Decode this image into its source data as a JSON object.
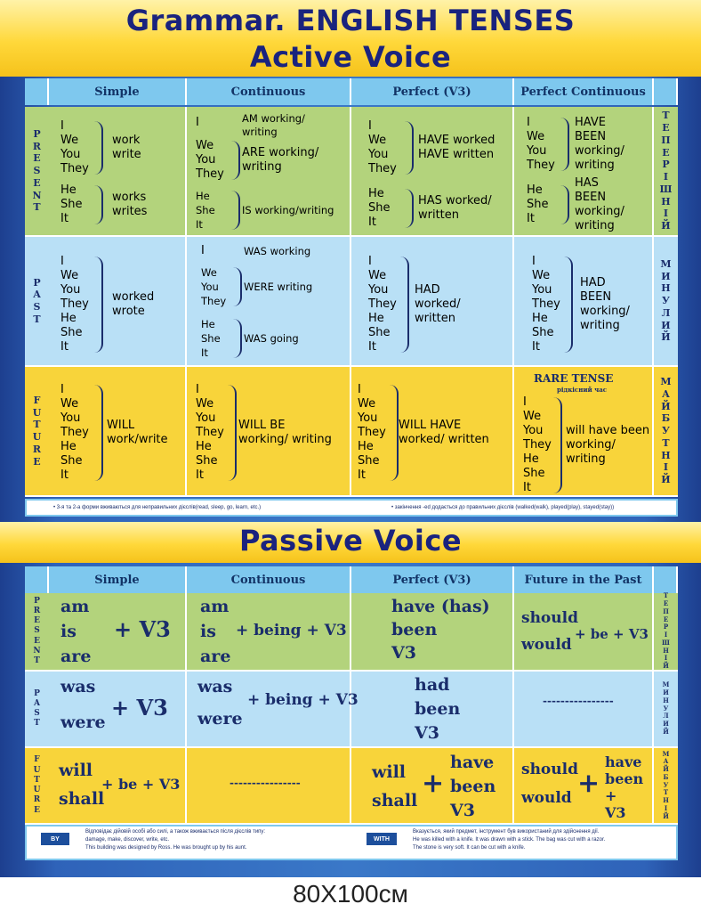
{
  "title_line1": "Grammar. ENGLISH TENSES",
  "title_line2": "Active Voice",
  "active": {
    "headers": [
      "Simple",
      "Continuous",
      "Perfect  (V3)",
      "Perfect Continuous"
    ],
    "rows": {
      "present": {
        "label": [
          "P",
          "R",
          "E",
          "S",
          "E",
          "N",
          "T"
        ],
        "ua": [
          "Т",
          "Е",
          "П",
          "Е",
          "Р",
          "І",
          "Ш",
          "Н",
          "І",
          "Й"
        ],
        "simple": {
          "p1": [
            "I",
            "We",
            "You",
            "They"
          ],
          "v1": [
            "work",
            "write"
          ],
          "p2": [
            "He",
            "She",
            "It"
          ],
          "v2": [
            "works",
            "writes"
          ]
        },
        "continuous": {
          "p1": [
            "I"
          ],
          "v1": [
            "AM working/",
            "writing"
          ],
          "p2": [
            "We",
            "You",
            "They"
          ],
          "v2": [
            "ARE working/",
            "writing"
          ],
          "p3": [
            "He",
            "She",
            "It"
          ],
          "v3": [
            "IS working/writing"
          ]
        },
        "perfect": {
          "p1": [
            "I",
            "We",
            "You",
            "They"
          ],
          "v1": [
            "HAVE worked",
            "HAVE written"
          ],
          "p2": [
            "He",
            "She",
            "It"
          ],
          "v2": [
            "HAS worked/",
            "written"
          ]
        },
        "perfect_cont": {
          "p1": [
            "I",
            "We",
            "You",
            "They"
          ],
          "v1": [
            "HAVE",
            "BEEN",
            "working/",
            "writing"
          ],
          "p2": [
            "He",
            "She",
            "It"
          ],
          "v2": [
            "HAS",
            "BEEN",
            "working/",
            "writing"
          ]
        }
      },
      "past": {
        "label": [
          "P",
          "A",
          "S",
          "T"
        ],
        "ua": [
          "М",
          "И",
          "Н",
          "У",
          "Л",
          "И",
          "Й"
        ],
        "simple": {
          "p1": [
            "I",
            "We",
            "You",
            "They",
            "He",
            "She",
            "It"
          ],
          "v1": [
            "worked",
            "wrote"
          ]
        },
        "continuous": {
          "p1": [
            "I"
          ],
          "v1": [
            "WAS  working"
          ],
          "p2": [
            "We",
            "You",
            "They"
          ],
          "v2": [
            "WERE  writing"
          ],
          "p3": [
            "He",
            "She",
            "It"
          ],
          "v3": [
            "WAS  going"
          ]
        },
        "perfect": {
          "p1": [
            "I",
            "We",
            "You",
            "They",
            "He",
            "She",
            "It"
          ],
          "v1": [
            "HAD",
            "worked/",
            "written"
          ]
        },
        "perfect_cont": {
          "p1": [
            "I",
            "We",
            "You",
            "They",
            "He",
            "She",
            "It"
          ],
          "v1": [
            "HAD",
            "BEEN",
            "working/",
            "writing"
          ]
        }
      },
      "future": {
        "label": [
          "F",
          "U",
          "T",
          "U",
          "R",
          "E"
        ],
        "ua": [
          "М",
          "А",
          "Й",
          "Б",
          "У",
          "Т",
          "Н",
          "І",
          "Й"
        ],
        "simple": {
          "p1": [
            "I",
            "We",
            "You",
            "They",
            "He",
            "She",
            "It"
          ],
          "v1": [
            "WILL",
            "work/write"
          ]
        },
        "continuous": {
          "p1": [
            "I",
            "We",
            "You",
            "They",
            "He",
            "She",
            "It"
          ],
          "v1": [
            "WILL BE",
            "working/ writing"
          ]
        },
        "perfect": {
          "p1": [
            "I",
            "We",
            "You",
            "They",
            "He",
            "She",
            "It"
          ],
          "v1": [
            "WILL HAVE",
            "worked/ written"
          ]
        },
        "perfect_cont": {
          "rare": "RARE TENSE",
          "rare_ua": "рідкісний час",
          "p1": [
            "I",
            "We",
            "You",
            "They",
            "He",
            "She",
            "It"
          ],
          "v1": [
            "will have been",
            "working/",
            "writing"
          ]
        }
      }
    },
    "note_left": "• 3-я та 2-а форми вживаються для неправильних дієслів(read, sleep, go, learn, etc.)",
    "note_right": "• закінчення  -ed  додається до правильних дієслів (walked(walk), played(play), stayed(stay))"
  },
  "passive_title": "Passive Voice",
  "passive": {
    "headers": [
      "Simple",
      "Continuous",
      "Perfect  (V3)",
      "Future in the Past"
    ],
    "present_label": [
      "P",
      "R",
      "E",
      "S",
      "E",
      "N",
      "T"
    ],
    "present_ua": [
      "Т",
      "Е",
      "П",
      "Е",
      "Р",
      "І",
      "Ш",
      "Н",
      "І",
      "Й"
    ],
    "past_label": [
      "P",
      "A",
      "S",
      "T"
    ],
    "past_ua": [
      "М",
      "И",
      "Н",
      "У",
      "Л",
      "И",
      "Й"
    ],
    "future_label": [
      "F",
      "U",
      "T",
      "U",
      "R",
      "E"
    ],
    "future_ua": [
      "М",
      "А",
      "Й",
      "Б",
      "У",
      "Т",
      "Н",
      "І",
      "Й"
    ],
    "present_simple": [
      "am",
      "is",
      "are"
    ],
    "present_simple_v": "+ V3",
    "present_cont": [
      "am",
      "is",
      "are"
    ],
    "present_cont_v": "+ being + V3",
    "present_perfect": [
      "have (has)",
      "been",
      "V3"
    ],
    "present_fip": [
      "should",
      "would"
    ],
    "present_fip_v": "+ be + V3",
    "past_simple": [
      "was",
      "were"
    ],
    "past_simple_v": "+ V3",
    "past_cont": [
      "was",
      "were"
    ],
    "past_cont_v": "+ being + V3",
    "past_perfect": [
      "had",
      "been",
      "V3"
    ],
    "past_fip": "----------------",
    "future_simple": [
      "will",
      "shall"
    ],
    "future_simple_v": "+ be + V3",
    "future_cont": "----------------",
    "future_perfect_l": [
      "will",
      "shall"
    ],
    "future_perfect_plus": "+",
    "future_perfect_r": [
      "have",
      "been",
      "V3"
    ],
    "future_fip_l": [
      "should",
      "would"
    ],
    "future_fip_plus": "+",
    "future_fip_r": [
      "have",
      "been",
      "+",
      "V3"
    ],
    "by_badge": "BY",
    "by_lines": [
      "Відповідає дійовій особі або силі, а також вживається після дієслів типу:",
      "damage, make, discover, write, etc.",
      "This building was designed by Ross.        He was brought up by his aunt."
    ],
    "with_badge": "WITH",
    "with_lines": [
      "Вказується, який предмет, інструмент був використаний для здійснення дії.",
      "He was killed with a knife.     It was drawn with a stick.     The bag was cut with a razor.",
      "The stone is very soft. It can be cut with a knife."
    ]
  },
  "size_label": "80X100см"
}
